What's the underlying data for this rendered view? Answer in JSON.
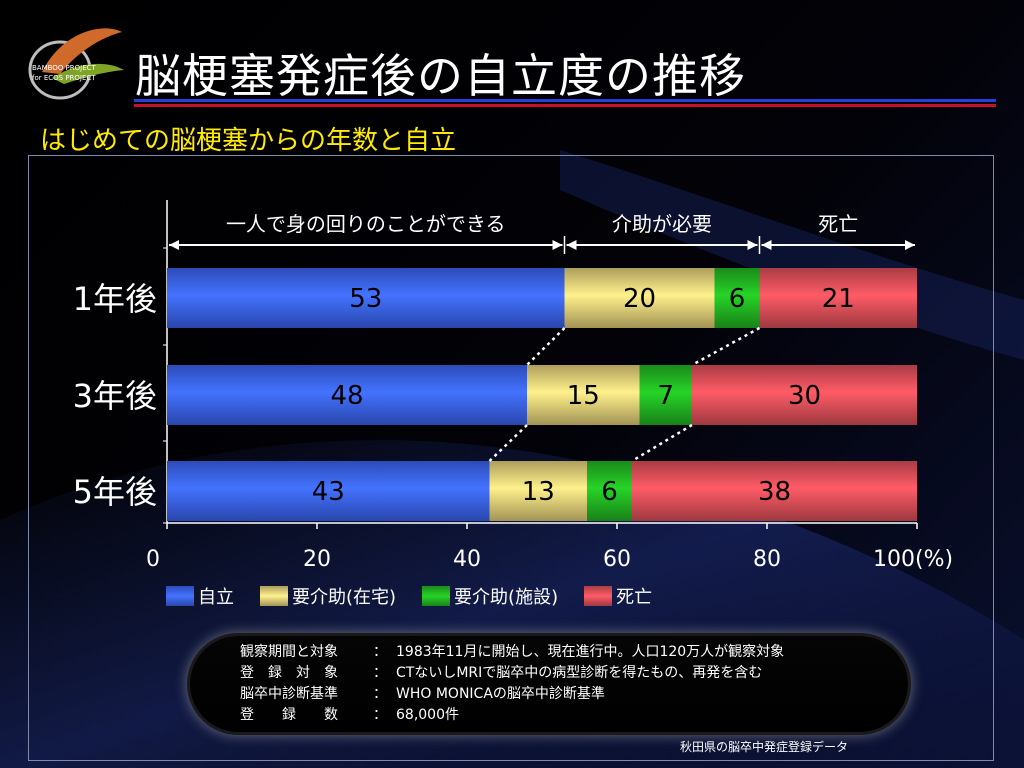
{
  "slide": {
    "title": "脳梗塞発症後の自立度の推移",
    "subtitle": "はじめての脳梗塞からの年数と自立",
    "source": "秋田県の脳卒中発症登録データ"
  },
  "logo": {
    "text_lines": [
      "BAMBOO PROJECT",
      "for ECOS PROJECT"
    ]
  },
  "notes": [
    {
      "label": "観察期間と対象",
      "value": "1983年11月に開始し、現在進行中。人口120万人が観察対象"
    },
    {
      "label": "登　録　対　象",
      "value": "CTないしMRIで脳卒中の病型診断を得たもの、再発を含む"
    },
    {
      "label": "脳卒中診断基準",
      "value": "WHO MONICAの脳卒中診断基準"
    },
    {
      "label": "登　　録　　数",
      "value": "68,000件"
    }
  ],
  "chart_data": {
    "type": "bar",
    "orientation": "horizontal",
    "stacked": true,
    "categories": [
      "1年後",
      "3年後",
      "5年後"
    ],
    "series": [
      {
        "name": "自立",
        "color": "#3b64f5",
        "values": [
          53,
          48,
          43
        ]
      },
      {
        "name": "要介助(在宅)",
        "color": "#e8d27a",
        "values": [
          20,
          15,
          13
        ]
      },
      {
        "name": "要介助(施設)",
        "color": "#22b822",
        "values": [
          6,
          7,
          6
        ]
      },
      {
        "name": "死亡",
        "color": "#e0505a",
        "values": [
          21,
          30,
          38
        ]
      }
    ],
    "xlim": [
      0,
      100
    ],
    "xticks": [
      0,
      20,
      40,
      60,
      80,
      100
    ],
    "xtick_labels": [
      "0",
      "20",
      "40",
      "60",
      "80",
      "100(%)"
    ],
    "top_brackets": [
      {
        "label": "一人で身の回りのことができる",
        "from": 0,
        "to": 53
      },
      {
        "label": "介助が必要",
        "from": 53,
        "to": 79
      },
      {
        "label": "死亡",
        "from": 79,
        "to": 100
      }
    ],
    "legend_position": "bottom-left",
    "grid": false
  }
}
